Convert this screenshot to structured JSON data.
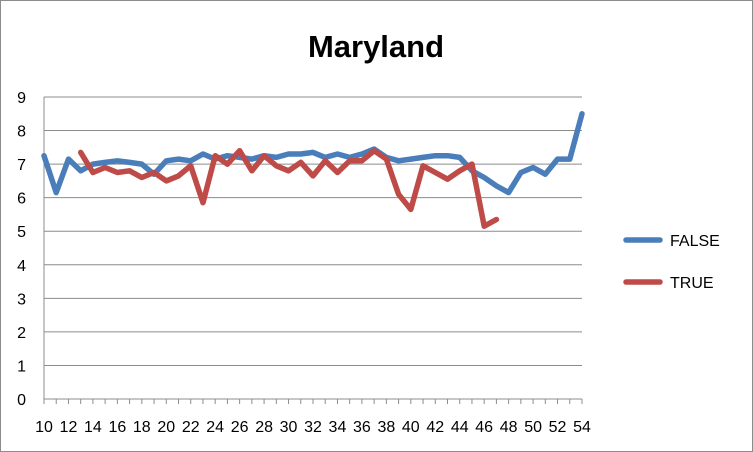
{
  "chart_data": {
    "type": "line",
    "title": "Maryland",
    "xlabel": "",
    "ylabel": "",
    "xlim": [
      10,
      54
    ],
    "ylim": [
      0,
      9
    ],
    "yticks": [
      0,
      1,
      2,
      3,
      4,
      5,
      6,
      7,
      8,
      9
    ],
    "xticks": [
      10,
      12,
      14,
      16,
      18,
      20,
      22,
      24,
      26,
      28,
      30,
      32,
      34,
      36,
      38,
      40,
      42,
      44,
      46,
      48,
      50,
      52,
      54
    ],
    "grid": "horizontal",
    "legend_position": "right",
    "series": [
      {
        "name": "FALSE",
        "color": "#4a7ebb",
        "x": [
          10,
          11,
          12,
          13,
          14,
          15,
          16,
          17,
          18,
          19,
          20,
          21,
          22,
          23,
          24,
          25,
          26,
          27,
          28,
          29,
          30,
          31,
          32,
          33,
          34,
          35,
          36,
          37,
          38,
          39,
          40,
          41,
          42,
          43,
          44,
          45,
          46,
          47,
          48,
          49,
          50,
          51,
          52,
          53,
          54
        ],
        "y": [
          7.25,
          6.15,
          7.15,
          6.8,
          7.0,
          7.05,
          7.1,
          7.05,
          7.0,
          6.7,
          7.1,
          7.15,
          7.1,
          7.3,
          7.15,
          7.25,
          7.2,
          7.15,
          7.25,
          7.2,
          7.3,
          7.3,
          7.35,
          7.2,
          7.3,
          7.2,
          7.3,
          7.45,
          7.2,
          7.1,
          7.15,
          7.2,
          7.25,
          7.25,
          7.2,
          6.8,
          6.6,
          6.35,
          6.15,
          6.75,
          6.9,
          6.7,
          7.15,
          7.15,
          8.5
        ]
      },
      {
        "name": "TRUE",
        "color": "#be4b48",
        "x": [
          13,
          14,
          15,
          16,
          17,
          18,
          19,
          20,
          21,
          22,
          23,
          24,
          25,
          26,
          27,
          28,
          29,
          30,
          31,
          32,
          33,
          34,
          35,
          36,
          37,
          38,
          39,
          40,
          41,
          42,
          43,
          44,
          45,
          46,
          47
        ],
        "y": [
          7.35,
          6.75,
          6.9,
          6.75,
          6.8,
          6.6,
          6.75,
          6.5,
          6.65,
          6.95,
          5.85,
          7.25,
          7.0,
          7.4,
          6.8,
          7.25,
          6.95,
          6.8,
          7.05,
          6.65,
          7.1,
          6.75,
          7.1,
          7.1,
          7.4,
          7.15,
          6.1,
          5.65,
          6.95,
          6.75,
          6.55,
          6.8,
          7.0,
          5.15,
          5.35
        ]
      }
    ]
  }
}
